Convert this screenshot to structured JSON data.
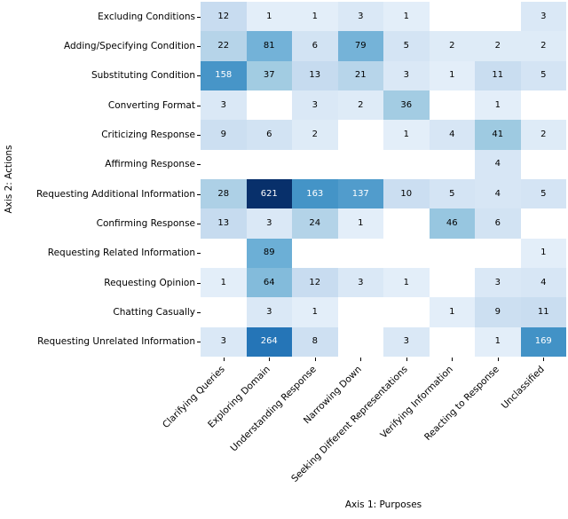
{
  "figure": {
    "background": "#ffffff"
  },
  "chart_data": {
    "type": "heatmap",
    "title": "",
    "xlabel": "Axis 1: Purposes",
    "ylabel": "Axis 2: Actions",
    "columns": [
      "Clarifying Queries",
      "Exploring Domain",
      "Understanding Response",
      "Narrowing Down",
      "Seeking Different Representations",
      "Verifying Information",
      "Reacting to Response",
      "Unclassified"
    ],
    "rows": [
      "Excluding Conditions",
      "Adding/Specifying Condition",
      "Substituting Condition",
      "Converting Format",
      "Criticizing Response",
      "Affirming Response",
      "Requesting Additional Information",
      "Confirming Response",
      "Requesting Related Information",
      "Requesting Opinion",
      "Chatting Casually",
      "Requesting Unrelated Information"
    ],
    "values": [
      [
        12,
        1,
        1,
        3,
        1,
        null,
        null,
        3
      ],
      [
        22,
        81,
        6,
        79,
        5,
        2,
        2,
        2
      ],
      [
        158,
        37,
        13,
        21,
        3,
        1,
        11,
        5
      ],
      [
        3,
        null,
        3,
        2,
        36,
        null,
        1,
        null
      ],
      [
        9,
        6,
        2,
        null,
        1,
        4,
        41,
        2
      ],
      [
        null,
        null,
        null,
        null,
        null,
        null,
        4,
        null
      ],
      [
        28,
        621,
        163,
        137,
        10,
        5,
        4,
        5
      ],
      [
        13,
        3,
        24,
        1,
        null,
        46,
        6,
        null
      ],
      [
        null,
        89,
        null,
        null,
        null,
        null,
        null,
        1
      ],
      [
        1,
        64,
        12,
        3,
        1,
        null,
        3,
        4
      ],
      [
        null,
        3,
        1,
        null,
        null,
        1,
        9,
        11
      ],
      [
        3,
        264,
        8,
        null,
        3,
        null,
        1,
        169
      ]
    ],
    "vmin": 0,
    "vmax": 621,
    "colormap": "Blues",
    "empty_cell_color": "#ffffff",
    "max_cell_color": "#08306b",
    "grid": false,
    "legend": "none"
  }
}
